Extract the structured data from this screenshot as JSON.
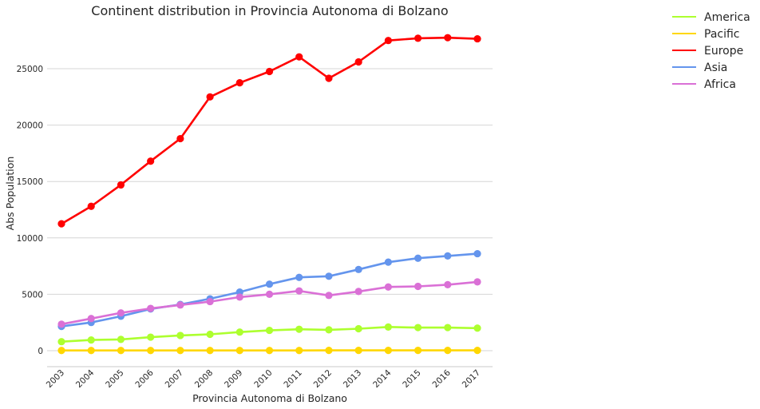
{
  "chart_data": {
    "type": "line",
    "title": "Continent distribution in Provincia Autonoma di Bolzano",
    "xlabel": "Provincia Autonoma di Bolzano",
    "ylabel": "Abs Population",
    "categories": [
      "2003",
      "2004",
      "2005",
      "2006",
      "2007",
      "2008",
      "2009",
      "2010",
      "2011",
      "2012",
      "2013",
      "2014",
      "2015",
      "2016",
      "2017"
    ],
    "ylim": [
      -1400,
      29500
    ],
    "yticks": [
      0,
      5000,
      10000,
      15000,
      20000,
      25000
    ],
    "grid": "horizontal",
    "legend_position": "outside top-right",
    "series": [
      {
        "name": "America",
        "color": "#adff2f",
        "values": [
          800,
          950,
          1000,
          1200,
          1350,
          1450,
          1650,
          1800,
          1900,
          1850,
          1950,
          2100,
          2050,
          2050,
          2000
        ]
      },
      {
        "name": "Pacific",
        "color": "#ffd700",
        "values": [
          20,
          20,
          20,
          20,
          20,
          20,
          20,
          20,
          20,
          25,
          25,
          25,
          25,
          25,
          25
        ]
      },
      {
        "name": "Europe",
        "color": "#ff0000",
        "values": [
          11250,
          12800,
          14700,
          16800,
          18800,
          22500,
          23750,
          24750,
          26050,
          24150,
          25600,
          27500,
          27700,
          27750,
          27650
        ]
      },
      {
        "name": "Asia",
        "color": "#6495ed",
        "values": [
          2150,
          2500,
          3050,
          3700,
          4100,
          4600,
          5200,
          5900,
          6500,
          6600,
          7200,
          7850,
          8200,
          8400,
          8600
        ]
      },
      {
        "name": "Africa",
        "color": "#da70d6",
        "values": [
          2350,
          2850,
          3350,
          3750,
          4050,
          4350,
          4750,
          5000,
          5300,
          4900,
          5250,
          5650,
          5700,
          5850,
          6100
        ]
      }
    ]
  }
}
